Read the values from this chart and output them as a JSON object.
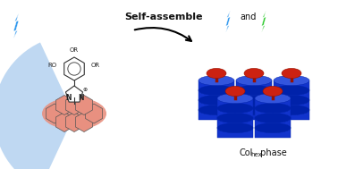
{
  "bg_color": "#ffffff",
  "blue_lightning": "#3399ee",
  "green_lightning": "#33cc33",
  "fan_color": "#aaccee",
  "fan_alpha": 0.75,
  "pink_color": "#e89080",
  "blue_cyl": "#1133cc",
  "blue_cyl_light": "#3355dd",
  "blue_cyl_dark": "#0022aa",
  "red_top": "#cc2211",
  "dark_red": "#991100",
  "title_text": "Self-assemble",
  "and_text": "and",
  "colhex_label": "Col",
  "colhex_sub": "hex",
  "colhex_suffix": " phase"
}
